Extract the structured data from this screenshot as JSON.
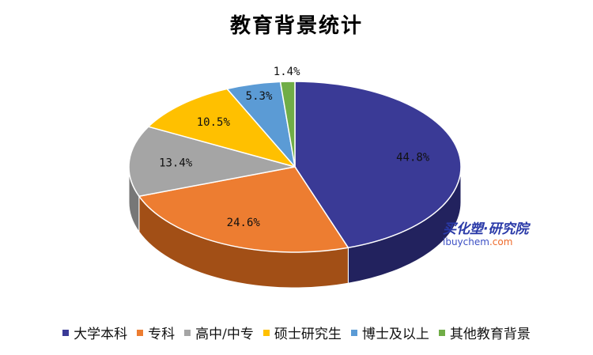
{
  "chart_data": {
    "type": "pie",
    "title": "教育背景统计",
    "categories": [
      "大学本科",
      "专科",
      "高中/中专",
      "硕士研究生",
      "博士及以上",
      "其他教育背景"
    ],
    "values": [
      44.8,
      24.6,
      13.4,
      10.5,
      5.3,
      1.4
    ],
    "labels": [
      "44.8%",
      "24.6%",
      "13.4%",
      "10.5%",
      "5.3%",
      "1.4%"
    ],
    "colors": [
      "#3a3a96",
      "#ed7d31",
      "#a5a5a5",
      "#ffc000",
      "#5b9bd5",
      "#70ad47"
    ],
    "side_colors": [
      "#22225e",
      "#a24f16",
      "#777777",
      "#b48700",
      "#3b6f9e",
      "#4a7a2e"
    ],
    "legend_position": "bottom",
    "style": "3d"
  },
  "watermark": {
    "brand": "买化塑·研究院",
    "site_prefix": "ibuychem",
    "site_suffix": ".com"
  }
}
